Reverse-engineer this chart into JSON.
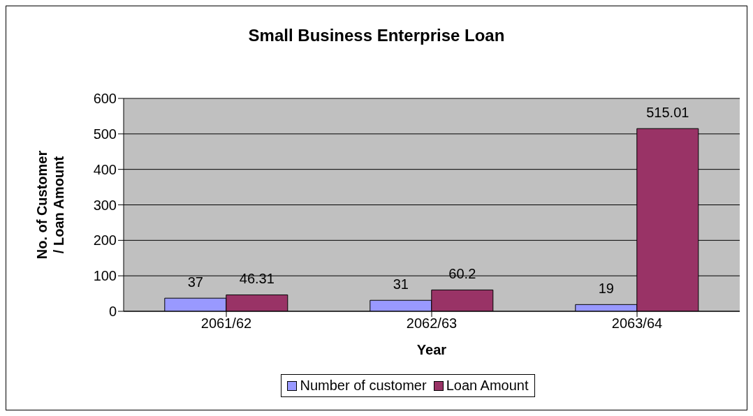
{
  "chart_data": {
    "type": "bar",
    "title": "Small Business Enterprise Loan",
    "xlabel": "Year",
    "ylabel": "No. of Customer / Loan Amount",
    "categories": [
      "2061/62",
      "2062/63",
      "2063/64"
    ],
    "series": [
      {
        "name": "Number of customer",
        "color": "#9999ff",
        "values": [
          37,
          31,
          19
        ]
      },
      {
        "name": "Loan Amount",
        "color": "#993366",
        "values": [
          46.31,
          60.2,
          515.01
        ]
      }
    ],
    "ylim": [
      0,
      600
    ],
    "yticks": [
      0,
      100,
      200,
      300,
      400,
      500,
      600
    ],
    "grid": "y",
    "legend": "bottom",
    "data_labels": true
  }
}
